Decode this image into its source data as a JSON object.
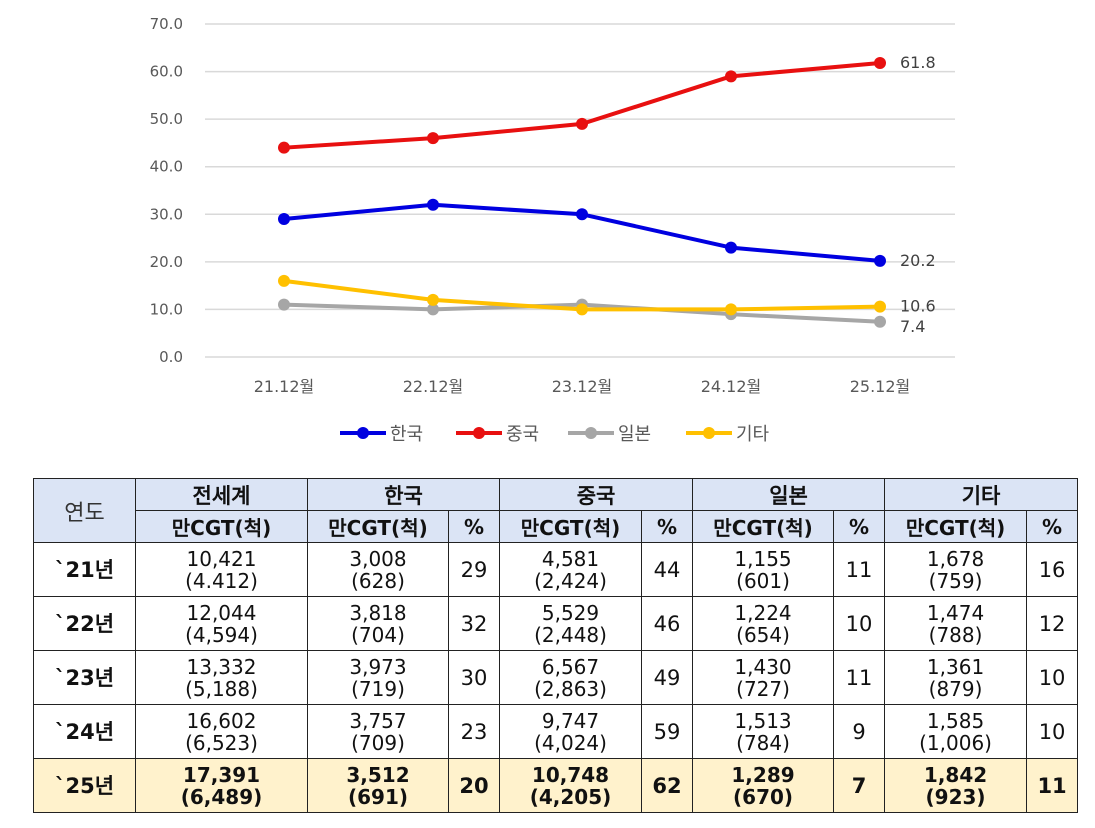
{
  "chart_data": {
    "type": "line",
    "categories": [
      "21.12월",
      "22.12월",
      "23.12월",
      "24.12월",
      "25.12월"
    ],
    "ylim": [
      0,
      70
    ],
    "yticks": [
      "0.0",
      "10.0",
      "20.0",
      "30.0",
      "40.0",
      "50.0",
      "60.0",
      "70.0"
    ],
    "grid": true,
    "legend_position": "bottom",
    "series": [
      {
        "name": "한국",
        "color": "#0000e0",
        "values": [
          29,
          32,
          30,
          23,
          20.2
        ],
        "end_label": "20.2"
      },
      {
        "name": "중국",
        "color": "#e81010",
        "values": [
          44,
          46,
          49,
          59,
          61.8
        ],
        "end_label": "61.8"
      },
      {
        "name": "일본",
        "color": "#a6a6a6",
        "values": [
          11,
          10,
          11,
          9,
          7.4
        ],
        "end_label": "7.4"
      },
      {
        "name": "기타",
        "color": "#ffc000",
        "values": [
          16,
          12,
          10,
          10,
          10.6
        ],
        "end_label": "10.6"
      }
    ]
  },
  "table": {
    "year_header": "연도",
    "groups": [
      "전세계",
      "한국",
      "중국",
      "일본",
      "기타"
    ],
    "unit": "만CGT(척)",
    "pct": "%",
    "rows": [
      {
        "year": "`21년",
        "world": [
          "10,421",
          "(4.412)"
        ],
        "kr": [
          "3,008",
          "(628)"
        ],
        "kr_pct": "29",
        "cn": [
          "4,581",
          "(2,424)"
        ],
        "cn_pct": "44",
        "jp": [
          "1,155",
          "(601)"
        ],
        "jp_pct": "11",
        "ot": [
          "1,678",
          "(759)"
        ],
        "ot_pct": "16"
      },
      {
        "year": "`22년",
        "world": [
          "12,044",
          "(4,594)"
        ],
        "kr": [
          "3,818",
          "(704)"
        ],
        "kr_pct": "32",
        "cn": [
          "5,529",
          "(2,448)"
        ],
        "cn_pct": "46",
        "jp": [
          "1,224",
          "(654)"
        ],
        "jp_pct": "10",
        "ot": [
          "1,474",
          "(788)"
        ],
        "ot_pct": "12"
      },
      {
        "year": "`23년",
        "world": [
          "13,332",
          "(5,188)"
        ],
        "kr": [
          "3,973",
          "(719)"
        ],
        "kr_pct": "30",
        "cn": [
          "6,567",
          "(2,863)"
        ],
        "cn_pct": "49",
        "jp": [
          "1,430",
          "(727)"
        ],
        "jp_pct": "11",
        "ot": [
          "1,361",
          "(879)"
        ],
        "ot_pct": "10"
      },
      {
        "year": "`24년",
        "world": [
          "16,602",
          "(6,523)"
        ],
        "kr": [
          "3,757",
          "(709)"
        ],
        "kr_pct": "23",
        "cn": [
          "9,747",
          "(4,024)"
        ],
        "cn_pct": "59",
        "jp": [
          "1,513",
          "(784)"
        ],
        "jp_pct": "9",
        "ot": [
          "1,585",
          "(1,006)"
        ],
        "ot_pct": "10"
      },
      {
        "year": "`25년",
        "world": [
          "17,391",
          "(6,489)"
        ],
        "kr": [
          "3,512",
          "(691)"
        ],
        "kr_pct": "20",
        "cn": [
          "10,748",
          "(4,205)"
        ],
        "cn_pct": "62",
        "jp": [
          "1,289",
          "(670)"
        ],
        "jp_pct": "7",
        "ot": [
          "1,842",
          "(923)"
        ],
        "ot_pct": "11"
      }
    ]
  }
}
